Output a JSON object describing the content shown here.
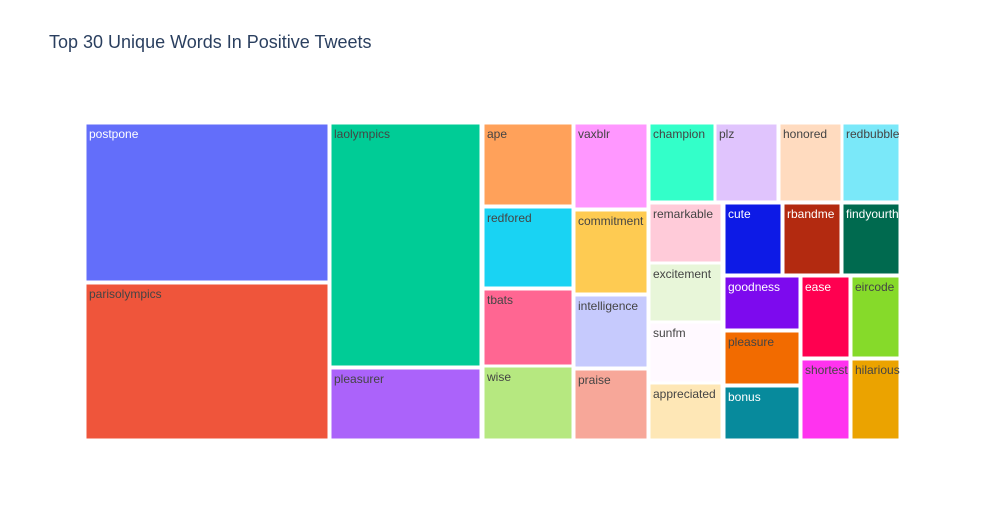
{
  "chart_data": {
    "type": "treemap",
    "title": "Top 30 Unique Words In Positive Tweets",
    "nodes": [
      {
        "label": "postpone",
        "color": "#636efa",
        "text_color": "#ffffff"
      },
      {
        "label": "parisolympics",
        "color": "#ef553b",
        "text_color": "#444444"
      },
      {
        "label": "laolympics",
        "color": "#00cc96",
        "text_color": "#444444"
      },
      {
        "label": "pleasurer",
        "color": "#ab63fa",
        "text_color": "#444444"
      },
      {
        "label": "ape",
        "color": "#ffa15a",
        "text_color": "#444444"
      },
      {
        "label": "redfored",
        "color": "#19d3f3",
        "text_color": "#444444"
      },
      {
        "label": "tbats",
        "color": "#ff6692",
        "text_color": "#444444"
      },
      {
        "label": "wise",
        "color": "#b6e880",
        "text_color": "#444444"
      },
      {
        "label": "vaxblr",
        "color": "#ff97ff",
        "text_color": "#444444"
      },
      {
        "label": "commitment",
        "color": "#fecb52",
        "text_color": "#444444"
      },
      {
        "label": "intelligence",
        "color": "#c6cafd",
        "text_color": "#444444"
      },
      {
        "label": "praise",
        "color": "#f7a799",
        "text_color": "#444444"
      },
      {
        "label": "champion",
        "color": "#33ffc9",
        "text_color": "#444444"
      },
      {
        "label": "plz",
        "color": "#e0c4fd",
        "text_color": "#444444"
      },
      {
        "label": "honored",
        "color": "#ffdbbf",
        "text_color": "#444444"
      },
      {
        "label": "redbubble",
        "color": "#7ae8f9",
        "text_color": "#444444"
      },
      {
        "label": "remarkable",
        "color": "#ffcbd9",
        "text_color": "#444444"
      },
      {
        "label": "excitement",
        "color": "#e8f6d9",
        "text_color": "#444444"
      },
      {
        "label": "sunfm",
        "color": "#fff9ff",
        "text_color": "#444444"
      },
      {
        "label": "appreciated",
        "color": "#fee7b6",
        "text_color": "#444444"
      },
      {
        "label": "cute",
        "color": "#0d1ae6",
        "text_color": "#ffffff"
      },
      {
        "label": "rbandme",
        "color": "#b32a10",
        "text_color": "#ffffff"
      },
      {
        "label": "findyourthing",
        "color": "#006a4f",
        "text_color": "#ffffff"
      },
      {
        "label": "goodness",
        "color": "#7d0aee",
        "text_color": "#ffffff"
      },
      {
        "label": "ease",
        "color": "#ff0050",
        "text_color": "#ffffff"
      },
      {
        "label": "eircode",
        "color": "#86da2a",
        "text_color": "#444444"
      },
      {
        "label": "pleasure",
        "color": "#f26b00",
        "text_color": "#444444"
      },
      {
        "label": "shortest",
        "color": "#ff33ef",
        "text_color": "#444444"
      },
      {
        "label": "hilarious",
        "color": "#eba300",
        "text_color": "#444444"
      },
      {
        "label": "bonus",
        "color": "#078a9c",
        "text_color": "#ffffff"
      }
    ]
  }
}
